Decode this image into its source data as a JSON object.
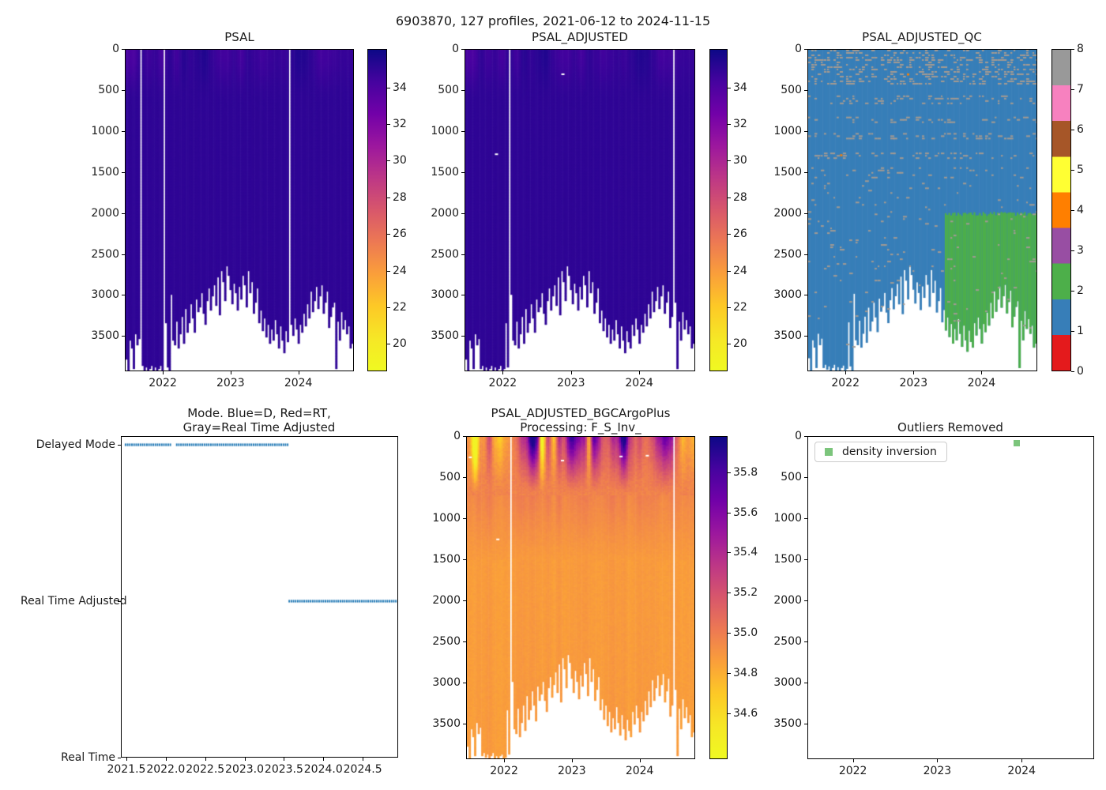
{
  "figure": {
    "title": "6903870, 127 profiles, 2021-06-12 to 2024-11-15",
    "background": "#ffffff"
  },
  "panels": {
    "psal": {
      "title": "PSAL"
    },
    "adjusted": {
      "title": "PSAL_ADJUSTED"
    },
    "qc": {
      "title": "PSAL_ADJUSTED_QC"
    },
    "mode": {
      "title_line1": "Mode. Blue=D, Red=RT,",
      "title_line2": "Gray=Real Time Adjusted"
    },
    "bgc": {
      "title_line1": "PSAL_ADJUSTED_BGCArgoPlus",
      "title_line2": "Processing: F_S_Inv_"
    },
    "outliers": {
      "title": "Outliers Removed",
      "legend_label": "density inversion"
    }
  },
  "colors": {
    "mode_marker": "#1f77b4",
    "outlier_marker": "#7cc57c",
    "qc_speckle": "#a39a92",
    "qc_base": "#377eb8",
    "qc_region2": "#4daf4a",
    "axis_text": "#1a1a1a"
  },
  "chart_data": [
    {
      "id": "psal",
      "type": "heatmap",
      "title": "PSAL",
      "x_range": [
        2021.44,
        2024.82
      ],
      "y_range": [
        0,
        3930
      ],
      "x_ticks": [
        2022,
        2023,
        2024
      ],
      "x_tick_labels": [
        "2022",
        "2023",
        "2024"
      ],
      "y_ticks": [
        0,
        500,
        1000,
        1500,
        2000,
        2500,
        3000,
        3500
      ],
      "colormap": "plasma_r",
      "colorbar": {
        "vmin": 18.5,
        "vmax": 36.1,
        "ticks": [
          34,
          32,
          30,
          28,
          26,
          24,
          22,
          20
        ],
        "tick_labels": [
          "34",
          "32",
          "30",
          "28",
          "26",
          "24",
          "22",
          "20"
        ]
      },
      "value_model": {
        "deep_value": 35.05,
        "surface_min": 33.9,
        "surface_max": 35.6,
        "surface_depth": 650
      },
      "missing_profile_indices": [
        8,
        21,
        91
      ],
      "profile_depths": [
        3780,
        3940,
        3560,
        3650,
        3900,
        3480,
        3620,
        3540,
        3900,
        3860,
        3920,
        3880,
        3940,
        3900,
        3860,
        3930,
        3890,
        3950,
        3900,
        3870,
        3930,
        3910,
        3340,
        3880,
        3940,
        2990,
        3560,
        3620,
        3320,
        3650,
        3480,
        3270,
        3590,
        3160,
        3450,
        3330,
        3100,
        3280,
        3460,
        3050,
        3210,
        3140,
        2980,
        3220,
        3350,
        3070,
        2920,
        3180,
        3020,
        2870,
        3120,
        2780,
        3240,
        2700,
        2830,
        3060,
        2650,
        2760,
        2940,
        3110,
        2850,
        2980,
        3190,
        2900,
        3040,
        2760,
        2880,
        3150,
        2700,
        2980,
        2830,
        3220,
        3080,
        2920,
        3340,
        3190,
        3440,
        3280,
        3520,
        3360,
        3600,
        3420,
        3560,
        3300,
        3480,
        3640,
        3380,
        3560,
        3700,
        3440,
        3580,
        3650,
        3350,
        3500,
        3280,
        3420,
        3600,
        3360,
        3460,
        3220,
        3380,
        3100,
        3290,
        2960,
        3210,
        3060,
        2900,
        3160,
        3020,
        2880,
        3230,
        3090,
        2950,
        3400,
        3270,
        3150,
        3080,
        3900,
        3320,
        3560,
        3200,
        3420,
        3300,
        3480,
        3380,
        3650,
        3600
      ]
    },
    {
      "id": "psal_adjusted",
      "type": "heatmap",
      "title": "PSAL_ADJUSTED",
      "x_range": [
        2021.44,
        2024.82
      ],
      "y_range": [
        0,
        3930
      ],
      "x_ticks": [
        2022,
        2023,
        2024
      ],
      "x_tick_labels": [
        "2022",
        "2023",
        "2024"
      ],
      "y_ticks": [
        0,
        500,
        1000,
        1500,
        2000,
        2500,
        3000,
        3500
      ],
      "colormap": "plasma_r",
      "colorbar": {
        "vmin": 18.5,
        "vmax": 36.1,
        "ticks": [
          34,
          32,
          30,
          28,
          26,
          24,
          22,
          20
        ],
        "tick_labels": [
          "34",
          "32",
          "30",
          "28",
          "26",
          "24",
          "22",
          "20"
        ]
      },
      "value_model": {
        "deep_value": 35.05,
        "surface_min": 33.9,
        "surface_max": 35.6,
        "surface_depth": 650
      },
      "missing_profile_indices": [
        24,
        115
      ],
      "masked_points": [
        [
          2022.88,
          300
        ],
        [
          2021.9,
          1280
        ]
      ],
      "profile_depths_ref": 0
    },
    {
      "id": "psal_adjusted_qc",
      "type": "heatmap_categorical",
      "title": "PSAL_ADJUSTED_QC",
      "x_range": [
        2021.44,
        2024.82
      ],
      "y_range": [
        0,
        3930
      ],
      "x_ticks": [
        2022,
        2023,
        2024
      ],
      "x_tick_labels": [
        "2022",
        "2023",
        "2024"
      ],
      "y_ticks": [
        0,
        500,
        1000,
        1500,
        2000,
        2500,
        3000,
        3500
      ],
      "palette": {
        "0": "#e41a1c",
        "1": "#377eb8",
        "2": "#4daf4a",
        "3": "#984ea3",
        "4": "#ff7f00",
        "5": "#ffff33",
        "6": "#a65628",
        "7": "#f781bf",
        "8": "#999999"
      },
      "colorbar_ticks": [
        0,
        1,
        2,
        3,
        4,
        5,
        6,
        7,
        8
      ],
      "base_value": 1,
      "region_value2": {
        "x_from": 2023.45,
        "depth_from": 2000,
        "value": 2
      },
      "speckle_value": 8,
      "speckle_bands": [
        [
          0,
          430,
          0.5
        ],
        [
          560,
          660,
          0.33
        ],
        [
          820,
          880,
          0.4
        ],
        [
          1020,
          1090,
          0.4
        ],
        [
          1260,
          1320,
          0.35
        ],
        [
          1440,
          1560,
          0.18
        ],
        [
          1600,
          2150,
          0.07
        ],
        [
          2150,
          3930,
          0.05
        ]
      ],
      "flag_dots": [
        {
          "x": 2022.92,
          "depth": 300,
          "value": 4
        },
        {
          "x": 2021.93,
          "depth": 1290,
          "value": 4
        }
      ],
      "profile_depths_ref": 0
    },
    {
      "id": "mode",
      "type": "scatter",
      "title": "Mode. Blue=D, Red=RT, Gray=Real Time Adjusted",
      "x_range": [
        2021.43,
        2024.95
      ],
      "x_ticks": [
        2021.5,
        2022.0,
        2022.5,
        2023.0,
        2023.5,
        2024.0,
        2024.5
      ],
      "x_tick_labels": [
        "2021.5",
        "2022.0",
        "2022.5",
        "2023.0",
        "2023.5",
        "2024.0",
        "2024.5"
      ],
      "y_categories": [
        "Delayed Mode",
        "Real Time Adjusted",
        "Real Time"
      ],
      "segments": [
        {
          "category": "Delayed Mode",
          "x_from": 2021.47,
          "x_to": 2023.55,
          "gaps": [
            2022.08
          ]
        },
        {
          "category": "Real Time Adjusted",
          "x_from": 2023.56,
          "x_to": 2024.93,
          "gaps": []
        }
      ]
    },
    {
      "id": "bgc",
      "type": "heatmap",
      "title": "PSAL_ADJUSTED_BGCArgoPlus Processing: F_S_Inv_",
      "x_range": [
        2021.44,
        2024.82
      ],
      "y_range": [
        0,
        3930
      ],
      "x_ticks": [
        2022,
        2023,
        2024
      ],
      "x_tick_labels": [
        "2022",
        "2023",
        "2024"
      ],
      "y_ticks": [
        0,
        500,
        1000,
        1500,
        2000,
        2500,
        3000,
        3500
      ],
      "colormap": "plasma_r",
      "colorbar": {
        "vmin": 34.37,
        "vmax": 35.98,
        "ticks": [
          35.8,
          35.6,
          35.4,
          35.2,
          35.0,
          34.8,
          34.6
        ],
        "tick_labels": [
          "35.8",
          "35.6",
          "35.4",
          "35.2",
          "35.0",
          "34.8",
          "34.6"
        ]
      },
      "value_model": {
        "deep_value": 34.87,
        "mid_value": 34.97,
        "surface_base": 34.97,
        "dark_patch_centers": [
          2022.45,
          2023.02,
          2023.35,
          2023.82,
          2024.42
        ],
        "fresh_spot_centers": [
          2021.57,
          2022.57,
          2023.28
        ]
      },
      "missing_profile_indices": [
        24,
        115
      ],
      "masked_points": [
        [
          2021.49,
          250
        ],
        [
          2022.86,
          290
        ],
        [
          2023.73,
          240
        ],
        [
          2021.9,
          1253
        ],
        [
          2024.12,
          230
        ]
      ],
      "profile_depths_ref": 0
    },
    {
      "id": "outliers",
      "type": "scatter",
      "title": "Outliers Removed",
      "x_range": [
        2021.46,
        2024.86
      ],
      "y_range": [
        0,
        3930
      ],
      "x_ticks": [
        2022,
        2023,
        2024
      ],
      "x_tick_labels": [
        "2022",
        "2023",
        "2024"
      ],
      "y_ticks": [
        0,
        500,
        1000,
        1500,
        2000,
        2500,
        3000,
        3500
      ],
      "legend": [
        {
          "label": "density inversion",
          "color": "#7cc57c",
          "marker": "square"
        }
      ],
      "points": [
        {
          "x": 2023.95,
          "depth": 75,
          "label": "density inversion"
        }
      ]
    }
  ]
}
